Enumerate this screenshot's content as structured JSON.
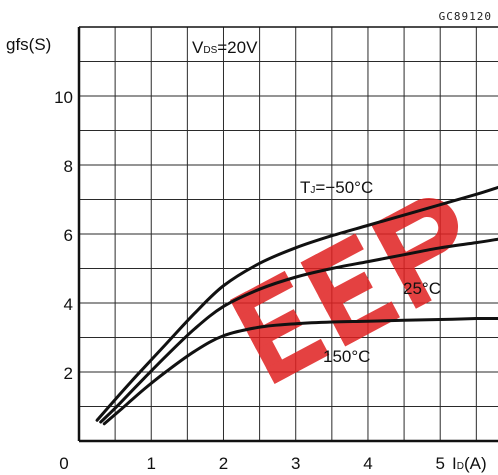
{
  "figure_ref": "GC89120",
  "chart_data": {
    "type": "line",
    "ylabel": "gfs(S)",
    "xlabel": "ID(A)",
    "xlabel_main": "I",
    "xlabel_sub": "D",
    "xlabel_unit": "(A)",
    "condition": {
      "main": "V",
      "sub": "DS",
      "rest": "=20V"
    },
    "xlim": [
      0,
      5.8
    ],
    "ylim": [
      0,
      12
    ],
    "x_ticks": [
      0,
      1,
      2,
      3,
      4,
      5
    ],
    "y_ticks": [
      2,
      4,
      6,
      8,
      10
    ],
    "grid": true,
    "series": [
      {
        "name": "TJ=−50°C",
        "label_main": "T",
        "label_sub": "J",
        "label_rest": "=−50°C",
        "x": [
          0.25,
          0.5,
          0.8,
          1.2,
          1.6,
          2.0,
          2.5,
          3.0,
          3.5,
          4.0,
          4.5,
          5.0,
          5.5,
          5.8
        ],
        "y": [
          0.6,
          1.2,
          1.9,
          2.8,
          3.7,
          4.5,
          5.15,
          5.6,
          5.95,
          6.25,
          6.55,
          6.85,
          7.15,
          7.35
        ]
      },
      {
        "name": "25°C",
        "label_main": "25°C",
        "x": [
          0.3,
          0.5,
          0.8,
          1.2,
          1.6,
          2.0,
          2.5,
          3.0,
          3.5,
          4.0,
          4.5,
          5.0,
          5.5,
          5.8
        ],
        "y": [
          0.55,
          0.95,
          1.6,
          2.45,
          3.25,
          3.9,
          4.4,
          4.75,
          5.0,
          5.2,
          5.4,
          5.6,
          5.75,
          5.85
        ]
      },
      {
        "name": "150°C",
        "label_main": "150°C",
        "x": [
          0.35,
          0.6,
          0.9,
          1.2,
          1.6,
          2.0,
          2.5,
          3.0,
          3.5,
          4.0,
          4.5,
          5.0,
          5.5,
          5.8
        ],
        "y": [
          0.5,
          0.95,
          1.5,
          2.0,
          2.6,
          3.05,
          3.3,
          3.4,
          3.45,
          3.47,
          3.5,
          3.52,
          3.55,
          3.55
        ]
      }
    ],
    "colors": {
      "grid": "#2a2a2a",
      "curve": "#111111",
      "watermark": "#e02020"
    }
  }
}
